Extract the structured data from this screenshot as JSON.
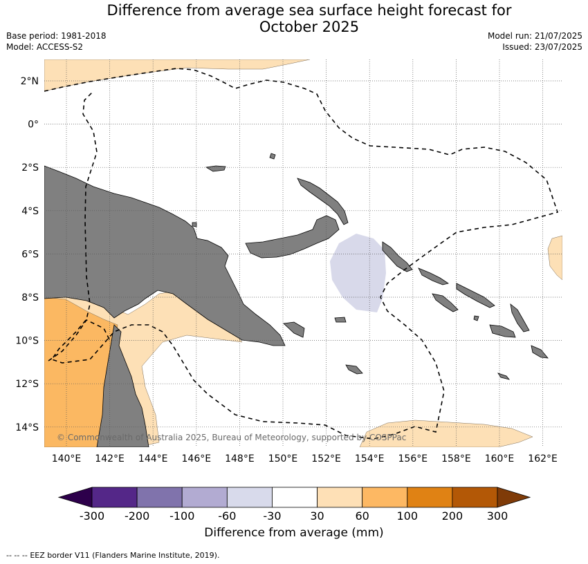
{
  "header": {
    "title_line1": "Difference from average sea surface height forecast for",
    "title_line2": "October 2025",
    "base_period": "Base period: 1981-2018",
    "model": "Model: ACCESS-S2",
    "model_run": "Model run: 21/07/2025",
    "issued": "Issued: 23/07/2025"
  },
  "map": {
    "lon_labels": [
      "140°E",
      "142°E",
      "144°E",
      "146°E",
      "148°E",
      "150°E",
      "152°E",
      "154°E",
      "156°E",
      "158°E",
      "160°E",
      "162°E"
    ],
    "lat_labels": [
      "2°N",
      "0°",
      "2°S",
      "4°S",
      "6°S",
      "8°S",
      "10°S",
      "12°S",
      "14°S"
    ],
    "credit": "© Commonwealth of Australia 2025, Bureau of Meteorology, supported by COSPPac",
    "colors": {
      "land": "#808080",
      "anomaly_30_60": "#fde0b6",
      "anomaly_60_100": "#fbb862",
      "anomaly_neg_60_30": "#d8d9ea",
      "eez": "#000000"
    }
  },
  "colorbar": {
    "ticks": [
      "-300",
      "-200",
      "-100",
      "-60",
      "-30",
      "30",
      "60",
      "100",
      "200",
      "300"
    ],
    "colors": [
      "#2d004b",
      "#542788",
      "#8073ac",
      "#b2abd2",
      "#d8daeb",
      "#ffffff",
      "#fee0b6",
      "#fdb863",
      "#e08214",
      "#b35806",
      "#7f3b08"
    ],
    "label": "Difference from average (mm)"
  },
  "footer": {
    "legend_symbol": "--  --  --",
    "legend_text": "EEZ border V11 (Flanders Marine Institute, 2019)."
  }
}
